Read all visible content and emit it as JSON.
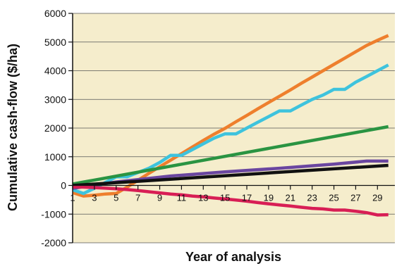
{
  "chart_data": {
    "type": "line",
    "xlabel": "Year of analysis",
    "ylabel": "Cumulative cash-flow ($/ha)",
    "xlim": [
      1,
      30
    ],
    "ylim": [
      -2000,
      6000
    ],
    "yticks": [
      -2000,
      -1000,
      0,
      1000,
      2000,
      3000,
      4000,
      5000,
      6000
    ],
    "xticks": [
      1,
      3,
      5,
      7,
      9,
      11,
      13,
      15,
      17,
      19,
      21,
      23,
      25,
      27,
      29
    ],
    "grid": "horizontal",
    "background_color": "#f5edcc",
    "series": [
      {
        "color": "#ee7f2d",
        "x": [
          1,
          2,
          3,
          4,
          5,
          6,
          7,
          8,
          9,
          10,
          11,
          12,
          13,
          14,
          15,
          16,
          17,
          18,
          19,
          20,
          21,
          22,
          23,
          24,
          25,
          26,
          27,
          28,
          29,
          30
        ],
        "values": [
          -250,
          -370,
          -340,
          -300,
          -280,
          -60,
          180,
          420,
          650,
          880,
          1110,
          1340,
          1570,
          1790,
          1990,
          2220,
          2440,
          2670,
          2890,
          3110,
          3330,
          3560,
          3780,
          4000,
          4220,
          4440,
          4660,
          4880,
          5060,
          5230
        ]
      },
      {
        "color": "#3ec3dd",
        "x": [
          1,
          2,
          3,
          4,
          5,
          6,
          7,
          8,
          9,
          10,
          11,
          12,
          13,
          14,
          15,
          16,
          17,
          18,
          19,
          20,
          21,
          22,
          23,
          24,
          25,
          26,
          27,
          28,
          29,
          30
        ],
        "values": [
          -150,
          -280,
          -100,
          100,
          300,
          300,
          450,
          600,
          800,
          1050,
          1050,
          1250,
          1450,
          1650,
          1800,
          1800,
          2000,
          2200,
          2400,
          2600,
          2600,
          2800,
          3000,
          3150,
          3350,
          3350,
          3600,
          3800,
          4000,
          4200
        ]
      },
      {
        "color": "#2a9442",
        "x": [
          1,
          30
        ],
        "values": [
          50,
          2050
        ]
      },
      {
        "color": "#6a46a0",
        "x": [
          1,
          5,
          10,
          15,
          20,
          25,
          28,
          30
        ],
        "values": [
          -100,
          120,
          330,
          470,
          600,
          740,
          850,
          850
        ]
      },
      {
        "color": "#111111",
        "x": [
          1,
          30
        ],
        "values": [
          0,
          700
        ]
      },
      {
        "color": "#d81e55",
        "x": [
          1,
          2,
          3,
          4,
          5,
          6,
          7,
          8,
          9,
          10,
          11,
          12,
          13,
          14,
          15,
          16,
          17,
          18,
          19,
          20,
          21,
          22,
          23,
          24,
          25,
          26,
          27,
          28,
          29,
          30
        ],
        "values": [
          -50,
          -60,
          -75,
          -95,
          -115,
          -145,
          -180,
          -220,
          -260,
          -300,
          -330,
          -370,
          -400,
          -440,
          -470,
          -510,
          -550,
          -600,
          -640,
          -680,
          -720,
          -760,
          -800,
          -820,
          -860,
          -860,
          -900,
          -950,
          -1030,
          -1020
        ]
      }
    ]
  }
}
